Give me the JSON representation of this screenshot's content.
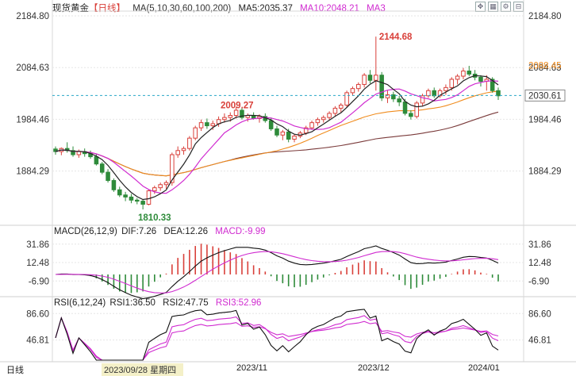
{
  "instrument": {
    "name": "现货黄金",
    "period_tag": "【日线】",
    "ma_label": "MA(5,10,30,60,100,200)",
    "ma5": "MA5:2035.37",
    "ma10": "MA10:2048.21",
    "ma3": "MA3"
  },
  "colors": {
    "up": "#d9403a",
    "down": "#2e8b3a",
    "ma5": "#222222",
    "ma10": "#d02bd0",
    "ma30": "#f08c1e",
    "ma60": "#7a3a3a",
    "ma100": "#3a8ad0",
    "dif": "#111111",
    "dea": "#d02bd0",
    "rsi1": "#111111",
    "rsi2": "#d02bd0",
    "rsi3": "#d02bd0",
    "price_line": "#2aa8c8",
    "grid": "#e6e6e6",
    "axis_text": "#333333"
  },
  "main_axis_labels": [
    "2184.80",
    "2084.63",
    "1984.46",
    "1884.29"
  ],
  "price_tags": {
    "ma30_value": "2088.45",
    "current_price": "2030.61",
    "right_partial": "2084.63"
  },
  "annotations": {
    "high": "2144.68",
    "mid_high": "2009.27",
    "low": "1810.33"
  },
  "macd": {
    "label": "MACD(26,12,9)",
    "dif": "DIF:7.26",
    "dea": "DEA:12.26",
    "macd": "MACD:-9.99",
    "axis_labels": [
      "31.86",
      "12.48",
      "-6.90"
    ]
  },
  "rsi": {
    "label": "RSI(6,12,24)",
    "rsi1": "RSI1:36.50",
    "rsi2": "RSI2:47.75",
    "rsi3": "RSI3:52.96",
    "axis_labels": [
      "86.60",
      "46.81"
    ]
  },
  "bottom": {
    "period": "日线",
    "date_cursor": "2023/09/28 星期四",
    "month_labels": [
      "2023/11",
      "2023/12",
      "2024/01"
    ]
  },
  "toolbar_icons": [
    "expand-icon",
    "grid-icon",
    "settings-icon"
  ],
  "chart_data": {
    "type": "candlestick",
    "ylim": [
      1810,
      2185
    ],
    "candles": [
      {
        "o": 1927,
        "h": 1932,
        "l": 1916,
        "c": 1922
      },
      {
        "o": 1922,
        "h": 1930,
        "l": 1915,
        "c": 1928
      },
      {
        "o": 1928,
        "h": 1940,
        "l": 1920,
        "c": 1924
      },
      {
        "o": 1924,
        "h": 1932,
        "l": 1912,
        "c": 1916
      },
      {
        "o": 1916,
        "h": 1926,
        "l": 1910,
        "c": 1922
      },
      {
        "o": 1922,
        "h": 1928,
        "l": 1912,
        "c": 1918
      },
      {
        "o": 1918,
        "h": 1924,
        "l": 1908,
        "c": 1912
      },
      {
        "o": 1912,
        "h": 1918,
        "l": 1895,
        "c": 1898
      },
      {
        "o": 1898,
        "h": 1902,
        "l": 1878,
        "c": 1882
      },
      {
        "o": 1882,
        "h": 1888,
        "l": 1862,
        "c": 1866
      },
      {
        "o": 1866,
        "h": 1870,
        "l": 1844,
        "c": 1848
      },
      {
        "o": 1848,
        "h": 1854,
        "l": 1834,
        "c": 1838
      },
      {
        "o": 1838,
        "h": 1844,
        "l": 1826,
        "c": 1834
      },
      {
        "o": 1834,
        "h": 1840,
        "l": 1822,
        "c": 1828
      },
      {
        "o": 1828,
        "h": 1832,
        "l": 1820,
        "c": 1826
      },
      {
        "o": 1826,
        "h": 1830,
        "l": 1810,
        "c": 1820
      },
      {
        "o": 1820,
        "h": 1848,
        "l": 1818,
        "c": 1846
      },
      {
        "o": 1846,
        "h": 1856,
        "l": 1840,
        "c": 1852
      },
      {
        "o": 1852,
        "h": 1862,
        "l": 1846,
        "c": 1858
      },
      {
        "o": 1858,
        "h": 1866,
        "l": 1850,
        "c": 1862
      },
      {
        "o": 1862,
        "h": 1920,
        "l": 1856,
        "c": 1916
      },
      {
        "o": 1916,
        "h": 1932,
        "l": 1910,
        "c": 1924
      },
      {
        "o": 1924,
        "h": 1932,
        "l": 1916,
        "c": 1928
      },
      {
        "o": 1928,
        "h": 1952,
        "l": 1924,
        "c": 1948
      },
      {
        "o": 1948,
        "h": 1972,
        "l": 1944,
        "c": 1968
      },
      {
        "o": 1968,
        "h": 1984,
        "l": 1962,
        "c": 1978
      },
      {
        "o": 1978,
        "h": 1986,
        "l": 1966,
        "c": 1972
      },
      {
        "o": 1972,
        "h": 1982,
        "l": 1964,
        "c": 1976
      },
      {
        "o": 1976,
        "h": 1990,
        "l": 1970,
        "c": 1984
      },
      {
        "o": 1984,
        "h": 1996,
        "l": 1978,
        "c": 1988
      },
      {
        "o": 1988,
        "h": 1998,
        "l": 1980,
        "c": 1992
      },
      {
        "o": 1992,
        "h": 2009,
        "l": 1986,
        "c": 2002
      },
      {
        "o": 2002,
        "h": 2006,
        "l": 1984,
        "c": 1988
      },
      {
        "o": 1988,
        "h": 1996,
        "l": 1980,
        "c": 1992
      },
      {
        "o": 1992,
        "h": 1998,
        "l": 1984,
        "c": 1986
      },
      {
        "o": 1986,
        "h": 1994,
        "l": 1978,
        "c": 1990
      },
      {
        "o": 1990,
        "h": 1996,
        "l": 1978,
        "c": 1982
      },
      {
        "o": 1982,
        "h": 1988,
        "l": 1962,
        "c": 1966
      },
      {
        "o": 1966,
        "h": 1972,
        "l": 1950,
        "c": 1954
      },
      {
        "o": 1954,
        "h": 1964,
        "l": 1944,
        "c": 1960
      },
      {
        "o": 1960,
        "h": 1966,
        "l": 1940,
        "c": 1946
      },
      {
        "o": 1946,
        "h": 1956,
        "l": 1940,
        "c": 1952
      },
      {
        "o": 1952,
        "h": 1962,
        "l": 1948,
        "c": 1958
      },
      {
        "o": 1958,
        "h": 1972,
        "l": 1954,
        "c": 1968
      },
      {
        "o": 1968,
        "h": 1982,
        "l": 1964,
        "c": 1978
      },
      {
        "o": 1978,
        "h": 1988,
        "l": 1972,
        "c": 1984
      },
      {
        "o": 1984,
        "h": 1992,
        "l": 1978,
        "c": 1988
      },
      {
        "o": 1988,
        "h": 2000,
        "l": 1984,
        "c": 1996
      },
      {
        "o": 1996,
        "h": 2010,
        "l": 1990,
        "c": 2006
      },
      {
        "o": 2006,
        "h": 2016,
        "l": 1998,
        "c": 2012
      },
      {
        "o": 2012,
        "h": 2040,
        "l": 2008,
        "c": 2036
      },
      {
        "o": 2036,
        "h": 2048,
        "l": 2030,
        "c": 2044
      },
      {
        "o": 2044,
        "h": 2056,
        "l": 2038,
        "c": 2052
      },
      {
        "o": 2052,
        "h": 2074,
        "l": 2046,
        "c": 2070
      },
      {
        "o": 2070,
        "h": 2080,
        "l": 2054,
        "c": 2060
      },
      {
        "o": 2060,
        "h": 2144.68,
        "l": 2040,
        "c": 2070
      },
      {
        "o": 2070,
        "h": 2076,
        "l": 2020,
        "c": 2026
      },
      {
        "o": 2026,
        "h": 2040,
        "l": 2016,
        "c": 2032
      },
      {
        "o": 2032,
        "h": 2038,
        "l": 2018,
        "c": 2024
      },
      {
        "o": 2024,
        "h": 2030,
        "l": 2010,
        "c": 2018
      },
      {
        "o": 2018,
        "h": 2024,
        "l": 1992,
        "c": 1996
      },
      {
        "o": 1996,
        "h": 2002,
        "l": 1984,
        "c": 1990
      },
      {
        "o": 1990,
        "h": 2020,
        "l": 1986,
        "c": 2016
      },
      {
        "o": 2016,
        "h": 2034,
        "l": 2010,
        "c": 2030
      },
      {
        "o": 2030,
        "h": 2044,
        "l": 2026,
        "c": 2040
      },
      {
        "o": 2040,
        "h": 2046,
        "l": 2026,
        "c": 2030
      },
      {
        "o": 2030,
        "h": 2044,
        "l": 2026,
        "c": 2040
      },
      {
        "o": 2040,
        "h": 2052,
        "l": 2032,
        "c": 2046
      },
      {
        "o": 2046,
        "h": 2066,
        "l": 2040,
        "c": 2062
      },
      {
        "o": 2062,
        "h": 2072,
        "l": 2052,
        "c": 2068
      },
      {
        "o": 2068,
        "h": 2084,
        "l": 2062,
        "c": 2078
      },
      {
        "o": 2078,
        "h": 2088,
        "l": 2068,
        "c": 2072
      },
      {
        "o": 2072,
        "h": 2080,
        "l": 2060,
        "c": 2066
      },
      {
        "o": 2066,
        "h": 2070,
        "l": 2048,
        "c": 2058
      },
      {
        "o": 2058,
        "h": 2070,
        "l": 2040,
        "c": 2062
      },
      {
        "o": 2062,
        "h": 2066,
        "l": 2036,
        "c": 2040
      },
      {
        "o": 2040,
        "h": 2046,
        "l": 2022,
        "c": 2030
      }
    ]
  }
}
